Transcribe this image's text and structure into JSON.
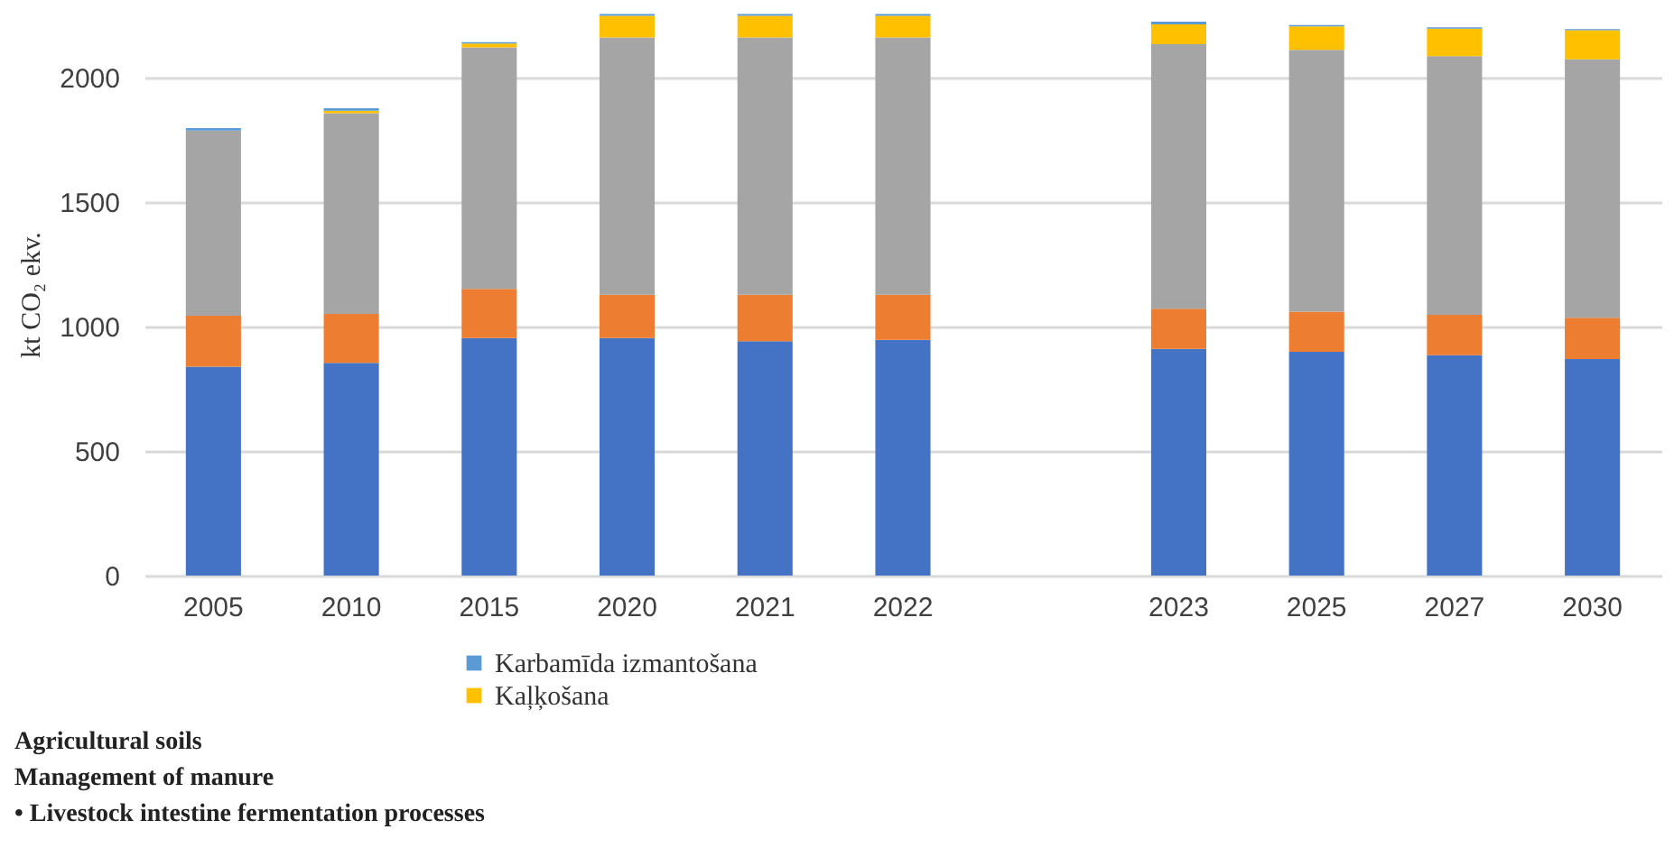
{
  "chart_data": {
    "type": "bar",
    "stacked": true,
    "ylabel": "kt CO₂ ekv.",
    "categories": [
      "2005",
      "2010",
      "2015",
      "2020",
      "2021",
      "2022",
      null,
      "2023",
      "2025",
      "2027",
      "2030"
    ],
    "series": [
      {
        "color": "#4472c4",
        "values": [
          838,
          854,
          953,
          953,
          941,
          946,
          null,
          910,
          898,
          885,
          869
        ]
      },
      {
        "color": "#ed7d31",
        "values": [
          205,
          196,
          198,
          174,
          186,
          181,
          null,
          161,
          161,
          162,
          166
        ]
      },
      {
        "color": "#a5a5a5",
        "values": [
          743,
          806,
          970,
          1033,
          1033,
          1033,
          null,
          1062,
          1052,
          1038,
          1038
        ]
      },
      {
        "name": "Kaļķošana",
        "color": "#ffc000",
        "values": [
          0,
          10,
          15,
          87,
          87,
          87,
          null,
          80,
          94,
          111,
          116
        ]
      },
      {
        "name": "Karbamīda izmantošana",
        "color": "#5b9bd5",
        "values": [
          10,
          10,
          5,
          8,
          8,
          8,
          null,
          11,
          5,
          5,
          5
        ]
      }
    ],
    "ylim": [
      0,
      2260
    ],
    "yticks": [
      0,
      500,
      1000,
      1500,
      2000
    ],
    "grid": "y",
    "legend": "bottom",
    "annotations": [
      "Agricultural soils",
      "Management of manure",
      "• Livestock intestine fermentation processes"
    ]
  }
}
